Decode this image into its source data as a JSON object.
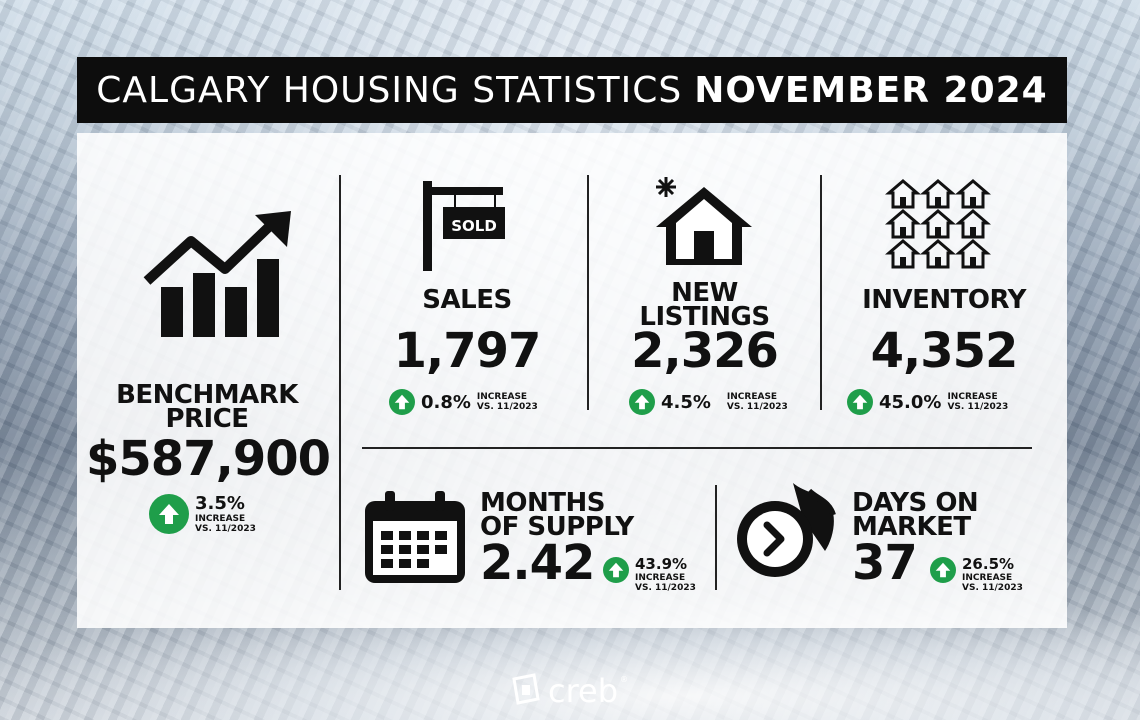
{
  "title": {
    "regular": "CALGARY HOUSING STATISTICS",
    "bold": "NOVEMBER 2024"
  },
  "benchmark": {
    "label_line1": "BENCHMARK",
    "label_line2": "PRICE",
    "value": "$587,900",
    "change": "3.5%",
    "change_text1": "INCREASE",
    "change_text2": "VS. 11/2023"
  },
  "sales": {
    "sign": "SOLD",
    "label": "SALES",
    "value": "1,797",
    "change": "0.8%",
    "change_text1": "INCREASE",
    "change_text2": "VS. 11/2023"
  },
  "new_listings": {
    "label_line1": "NEW",
    "label_line2": "LISTINGS",
    "value": "2,326",
    "change": "4.5%",
    "change_text1": "INCREASE",
    "change_text2": "VS. 11/2023"
  },
  "inventory": {
    "label": "INVENTORY",
    "value": "4,352",
    "change": "45.0%",
    "change_text1": "INCREASE",
    "change_text2": "VS. 11/2023"
  },
  "months_supply": {
    "label_line1": "MONTHS",
    "label_line2": "OF SUPPLY",
    "value": "2.42",
    "change": "43.9%",
    "change_text1": "INCREASE",
    "change_text2": "VS. 11/2023"
  },
  "days_on_market": {
    "label_line1": "DAYS ON",
    "label_line2": "MARKET",
    "value": "37",
    "change": "26.5%",
    "change_text1": "INCREASE",
    "change_text2": "VS. 11/2023"
  },
  "logo": {
    "text": "creb",
    "reg": "®"
  },
  "colors": {
    "accent_green": "#1f9e4a",
    "title_bg": "#0d0d0d"
  },
  "icons": [
    "trend-chart-icon",
    "sold-sign-icon",
    "new-house-icon",
    "houses-grid-icon",
    "calendar-icon",
    "clock-fire-icon",
    "arrow-up-icon",
    "creb-logo-icon"
  ]
}
